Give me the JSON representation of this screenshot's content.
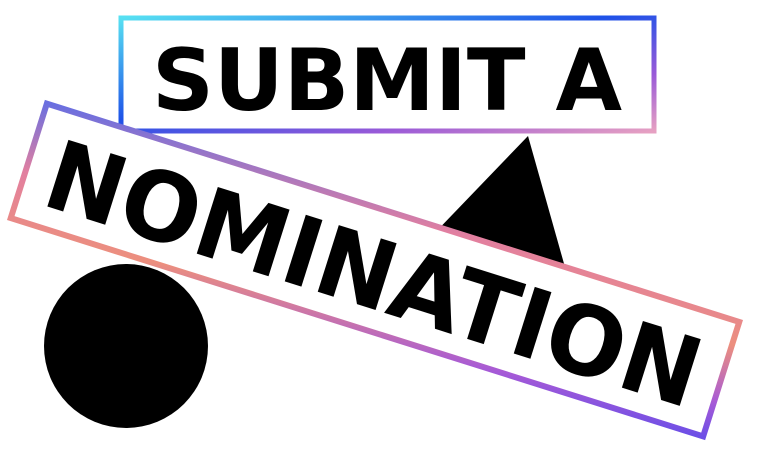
{
  "graphic": {
    "line1": "SUBMIT A",
    "line2": "NOMINATION"
  },
  "colors": {
    "text": "#000000",
    "shapes": "#000000",
    "background": "#ffffff",
    "frame_gradient": [
      "#4fd7f0",
      "#1f4fe6",
      "#8b57e0",
      "#e68aa8",
      "#e98a82",
      "#7b4fe0"
    ]
  },
  "shapes": [
    "black-triangle",
    "black-circle"
  ]
}
